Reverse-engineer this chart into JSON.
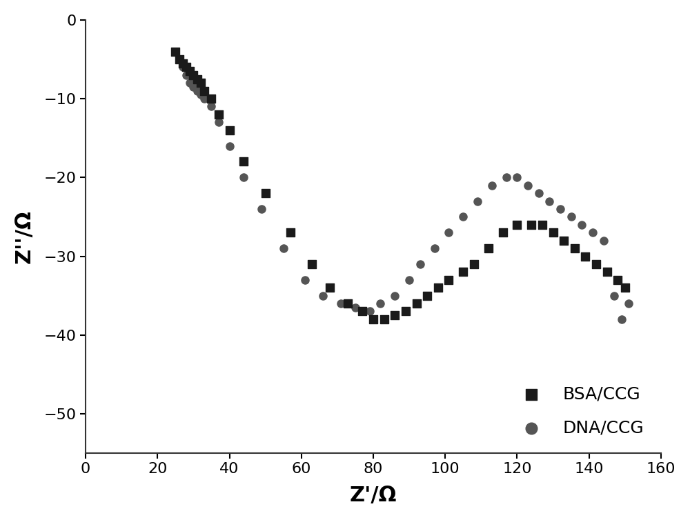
{
  "BSA_CCG_x": [
    25,
    26,
    27,
    28,
    29,
    30,
    31,
    32,
    33,
    35,
    37,
    40,
    44,
    50,
    57,
    63,
    68,
    73,
    77,
    80,
    83,
    86,
    89,
    92,
    95,
    98,
    101,
    105,
    108,
    112,
    116,
    120,
    124,
    127,
    130,
    133,
    136,
    139,
    142,
    145,
    148,
    150
  ],
  "BSA_CCG_y": [
    -4,
    -5,
    -5.5,
    -6,
    -6.5,
    -7,
    -7.5,
    -8,
    -9,
    -10,
    -12,
    -14,
    -18,
    -22,
    -27,
    -31,
    -34,
    -36,
    -37,
    -38,
    -38,
    -37.5,
    -37,
    -36,
    -35,
    -34,
    -33,
    -32,
    -31,
    -29,
    -27,
    -26,
    -26,
    -26,
    -27,
    -28,
    -29,
    -30,
    -31,
    -32,
    -33,
    -34
  ],
  "DNA_CCG_x": [
    25,
    26,
    27,
    28,
    29,
    30,
    31,
    32,
    33,
    35,
    37,
    40,
    44,
    49,
    55,
    61,
    66,
    71,
    75,
    79,
    82,
    86,
    90,
    93,
    97,
    101,
    105,
    109,
    113,
    117,
    120,
    123,
    126,
    129,
    132,
    135,
    138,
    141,
    144,
    147,
    149,
    151
  ],
  "DNA_CCG_y": [
    -4,
    -5,
    -6,
    -7,
    -8,
    -8.5,
    -9,
    -9.5,
    -10,
    -11,
    -13,
    -16,
    -20,
    -24,
    -29,
    -33,
    -35,
    -36,
    -36.5,
    -37,
    -36,
    -35,
    -33,
    -31,
    -29,
    -27,
    -25,
    -23,
    -21,
    -20,
    -20,
    -21,
    -22,
    -23,
    -24,
    -25,
    -26,
    -27,
    -28,
    -35,
    -38,
    -36
  ],
  "bsa_color": "#1a1a1a",
  "dna_color": "#555555",
  "bsa_marker": "s",
  "dna_marker": "o",
  "bsa_label": "BSA/CCG",
  "dna_label": "DNA/CCG",
  "xlabel": "Z'/Ω",
  "ylabel": "Z''/Ω",
  "xlim": [
    0,
    160
  ],
  "ylim_bottom": -55,
  "ylim_top": 0,
  "xticks": [
    0,
    20,
    40,
    60,
    80,
    100,
    120,
    140,
    160
  ],
  "yticks": [
    0,
    -10,
    -20,
    -30,
    -40,
    -50
  ],
  "marker_size": 8,
  "background_color": "#ffffff",
  "axis_linewidth": 1.5
}
